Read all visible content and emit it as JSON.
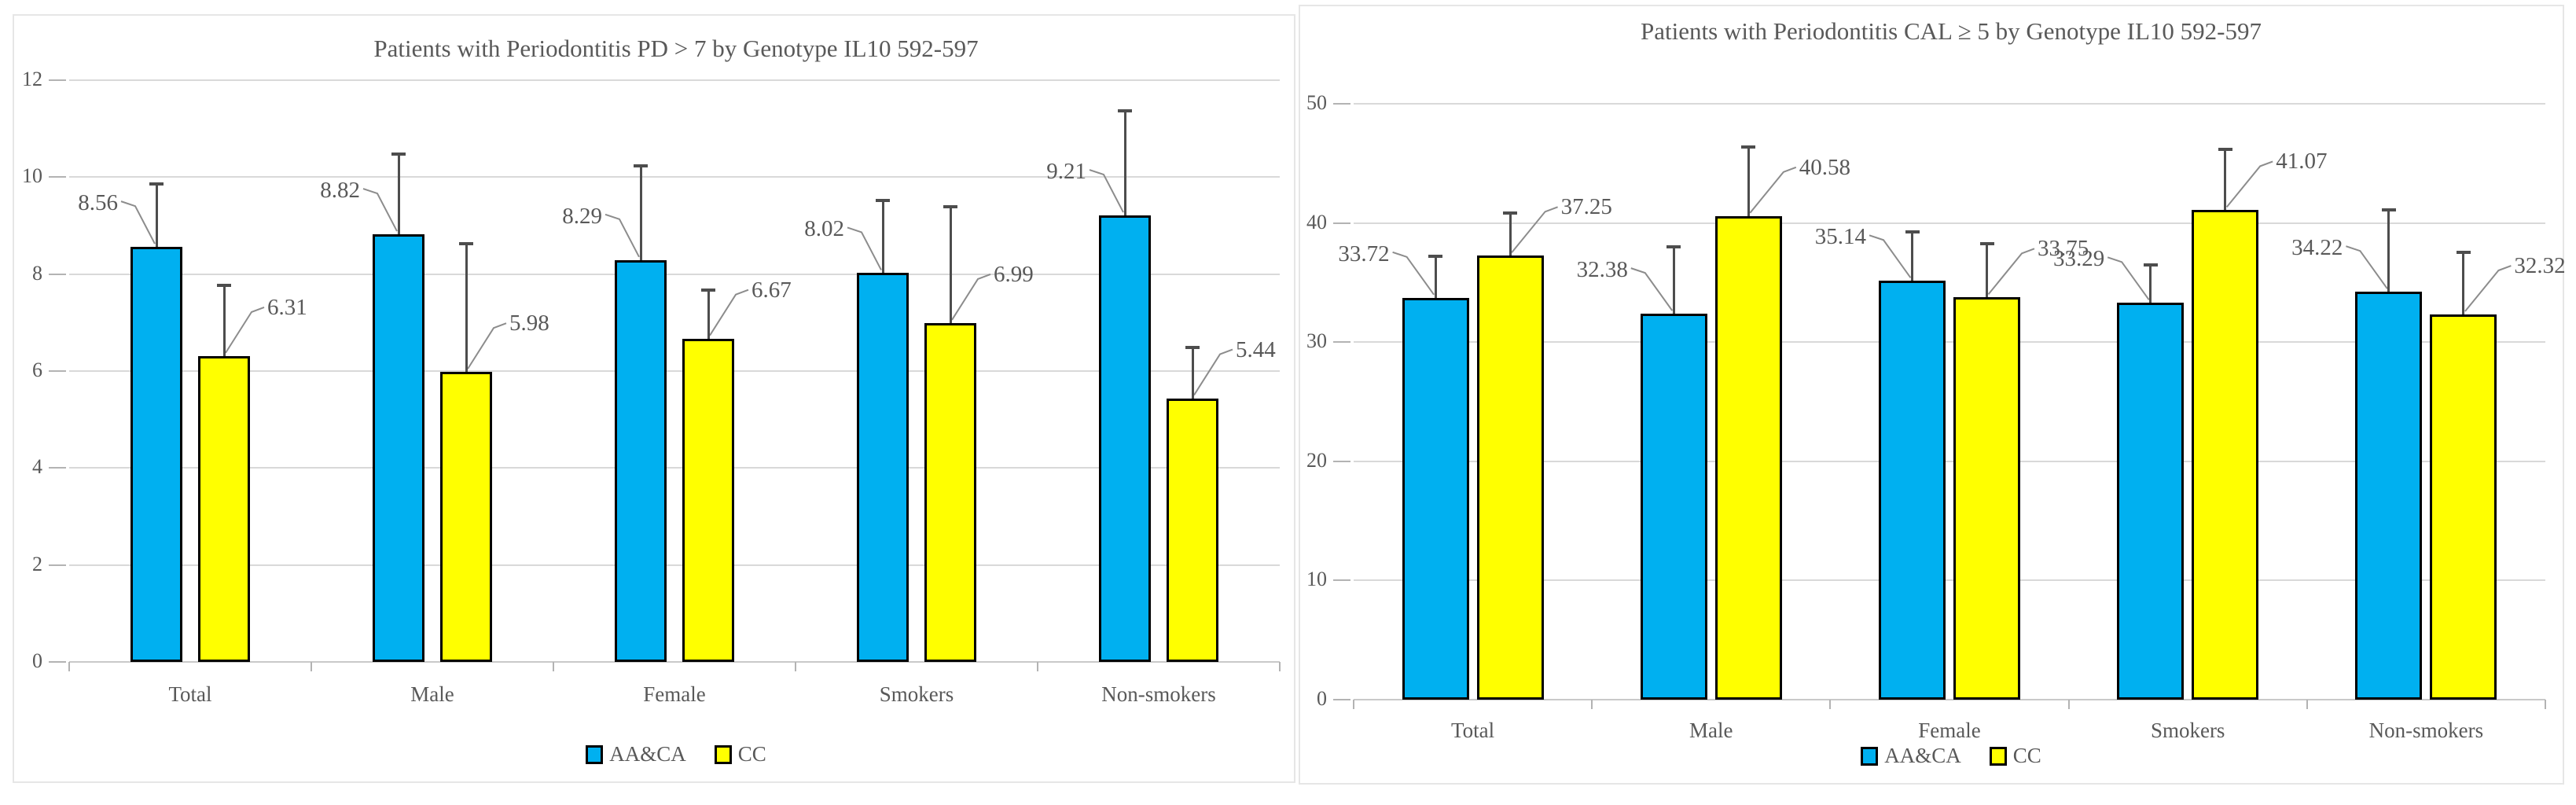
{
  "chart_data": [
    {
      "type": "bar",
      "title": "Patients with Periodontitis PD > 7 by Genotype IL10 592-597",
      "categories": [
        "Total",
        "Male",
        "Female",
        "Smokers",
        "Non-smokers"
      ],
      "xlabel": "",
      "ylabel": "",
      "ylim": [
        0,
        12
      ],
      "yticks": [
        0,
        2,
        4,
        6,
        8,
        10,
        12
      ],
      "grid": true,
      "legend_position": "bottom",
      "series": [
        {
          "name": "AA&CA",
          "color": "#00B0F0",
          "label_side": "left",
          "values": [
            8.56,
            8.82,
            8.29,
            8.02,
            9.21
          ],
          "error_plus": [
            1.3,
            1.65,
            1.95,
            1.5,
            2.15
          ]
        },
        {
          "name": "CC",
          "color": "#FFFF00",
          "label_side": "right",
          "values": [
            6.31,
            5.98,
            6.67,
            6.99,
            5.44
          ],
          "error_plus": [
            1.45,
            2.65,
            1.0,
            2.4,
            1.05
          ]
        }
      ]
    },
    {
      "type": "bar",
      "title": "Patients with Periodontitis CAL ≥ 5 by Genotype IL10 592-597",
      "categories": [
        "Total",
        "Male",
        "Female",
        "Smokers",
        "Non-smokers"
      ],
      "xlabel": "",
      "ylabel": "",
      "ylim": [
        0,
        50
      ],
      "yticks": [
        0,
        10,
        20,
        30,
        40,
        50
      ],
      "grid": true,
      "legend_position": "bottom",
      "series": [
        {
          "name": "AA&CA",
          "color": "#00B0F0",
          "label_side": "left",
          "values": [
            33.72,
            32.38,
            35.14,
            33.29,
            34.22
          ],
          "error_plus": [
            3.5,
            5.6,
            4.1,
            3.2,
            6.9
          ]
        },
        {
          "name": "CC",
          "color": "#FFFF00",
          "label_side": "right",
          "values": [
            37.25,
            40.58,
            33.75,
            41.07,
            32.32
          ],
          "error_plus": [
            3.6,
            5.8,
            4.5,
            5.1,
            5.2
          ]
        }
      ]
    }
  ],
  "colors": {
    "series_blue": "#00B0F0",
    "series_yellow": "#FFFF00",
    "gridline": "#d9d9d9",
    "text": "#595959",
    "error_bar": "#4d4d4d"
  }
}
